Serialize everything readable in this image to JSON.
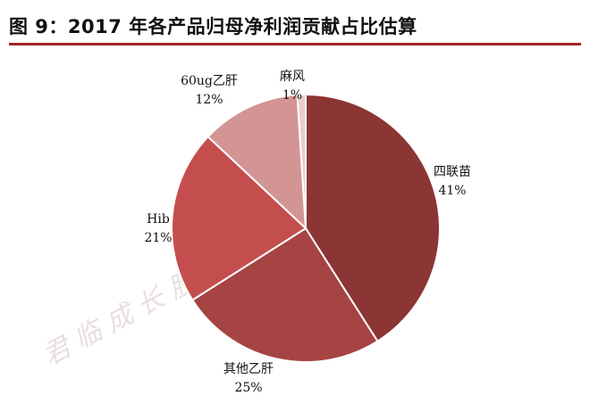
{
  "title": "图 9：2017 年各产品归母净利润贡献占比估算",
  "watermark": "君 临 成 长 股 投 资 服 务 平 台",
  "chart_data": {
    "type": "pie",
    "start_angle_deg": 0,
    "direction": "clockwise",
    "slices": [
      {
        "label": "四联苗",
        "value": 41,
        "display": "41%",
        "color": "#8b3534"
      },
      {
        "label": "其他乙肝",
        "value": 25,
        "display": "25%",
        "color": "#a64343"
      },
      {
        "label": "Hib",
        "value": 21,
        "display": "21%",
        "color": "#c44e4e"
      },
      {
        "label": "60ug乙肝",
        "value": 12,
        "display": "12%",
        "color": "#d39594"
      },
      {
        "label": "麻风",
        "value": 1,
        "display": "1%",
        "color": "#eccccc"
      }
    ],
    "legend": "none"
  }
}
